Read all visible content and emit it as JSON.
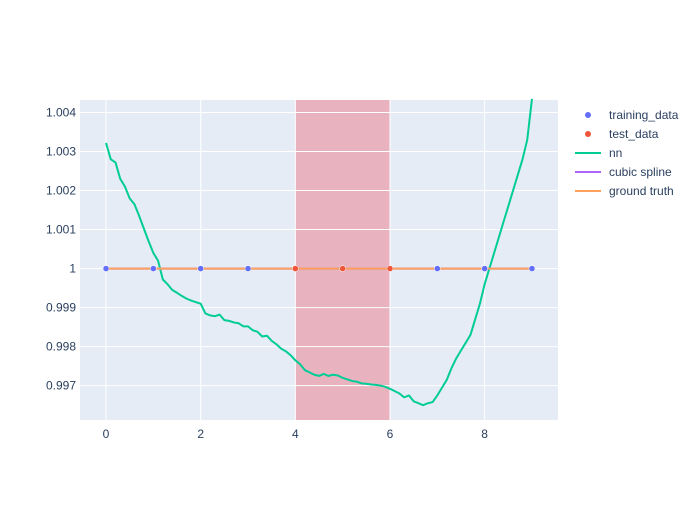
{
  "chart_data": {
    "type": "line",
    "title": "",
    "xlabel": "",
    "ylabel": "",
    "xlim": [
      -0.55,
      9.55
    ],
    "ylim": [
      0.99612,
      1.00432
    ],
    "grid": true,
    "legend_position": "top-right",
    "x_ticks": [
      0,
      2,
      4,
      6,
      8
    ],
    "x_tick_labels": [
      "0",
      "2",
      "4",
      "6",
      "8"
    ],
    "y_ticks": [
      0.997,
      0.998,
      0.999,
      1.0,
      1.001,
      1.002,
      1.003,
      1.004
    ],
    "y_tick_labels": [
      "0.997",
      "0.998",
      "0.999",
      "1",
      "1.001",
      "1.002",
      "1.003",
      "1.004"
    ],
    "shaded_region": {
      "x0": 4,
      "x1": 6,
      "color": "#e8a0ab"
    },
    "colors": {
      "plot_bg": "#e5ecf6",
      "grid": "#ffffff",
      "training_data": "#636efa",
      "test_data": "#ef553b",
      "nn": "#00cc96",
      "cubic_spline": "#ab63fa",
      "ground_truth": "#ffa15a"
    },
    "series": [
      {
        "name": "training_data",
        "mode": "markers",
        "x": [
          0,
          1,
          2,
          3,
          7,
          8,
          9
        ],
        "y": [
          1,
          1,
          1,
          1,
          1,
          1,
          1
        ]
      },
      {
        "name": "test_data",
        "mode": "markers",
        "x": [
          4,
          5,
          6
        ],
        "y": [
          1,
          1,
          1
        ]
      },
      {
        "name": "nn",
        "mode": "lines",
        "x": [
          0,
          0.1,
          0.2,
          0.3,
          0.4,
          0.5,
          0.6,
          0.7,
          0.8,
          0.9,
          1.0,
          1.1,
          1.2,
          1.3,
          1.4,
          1.5,
          1.6,
          1.7,
          1.8,
          1.9,
          2.0,
          2.1,
          2.2,
          2.3,
          2.4,
          2.5,
          2.6,
          2.7,
          2.8,
          2.9,
          3.0,
          3.1,
          3.2,
          3.3,
          3.4,
          3.5,
          3.6,
          3.7,
          3.8,
          3.9,
          4.0,
          4.1,
          4.2,
          4.3,
          4.4,
          4.5,
          4.6,
          4.7,
          4.8,
          4.9,
          5.0,
          5.1,
          5.2,
          5.3,
          5.4,
          5.5,
          5.6,
          5.7,
          5.8,
          5.9,
          6.0,
          6.1,
          6.2,
          6.3,
          6.4,
          6.5,
          6.6,
          6.7,
          6.8,
          6.9,
          7.0,
          7.1,
          7.2,
          7.3,
          7.4,
          7.5,
          7.6,
          7.7,
          7.8,
          7.9,
          8.0,
          8.1,
          8.2,
          8.3,
          8.4,
          8.5,
          8.6,
          8.7,
          8.8,
          8.9,
          9.0
        ],
        "y": [
          1.00322,
          1.0028,
          1.00272,
          1.0023,
          1.0021,
          1.0018,
          1.00165,
          1.00135,
          1.00102,
          1.0007,
          1.0004,
          1.0002,
          0.99972,
          0.9996,
          0.99945,
          0.99938,
          0.9993,
          0.99923,
          0.99918,
          0.99914,
          0.9991,
          0.99885,
          0.9988,
          0.99878,
          0.99882,
          0.99868,
          0.99866,
          0.99862,
          0.9986,
          0.99852,
          0.99852,
          0.99842,
          0.99838,
          0.99826,
          0.99828,
          0.99815,
          0.99806,
          0.99795,
          0.99788,
          0.99778,
          0.99765,
          0.99755,
          0.9974,
          0.99734,
          0.99728,
          0.99725,
          0.9973,
          0.99725,
          0.99728,
          0.99726,
          0.9972,
          0.99716,
          0.99712,
          0.9971,
          0.99706,
          0.99705,
          0.99703,
          0.99702,
          0.997,
          0.99697,
          0.99692,
          0.99686,
          0.9968,
          0.9967,
          0.99675,
          0.9966,
          0.99655,
          0.9965,
          0.99655,
          0.99658,
          0.99675,
          0.99695,
          0.99715,
          0.99745,
          0.9977,
          0.9979,
          0.9981,
          0.9983,
          0.9987,
          0.9991,
          0.9996,
          1.0,
          1.0004,
          1.0008,
          1.0012,
          1.0016,
          1.002,
          1.0024,
          1.0028,
          1.0033,
          1.00435
        ]
      },
      {
        "name": "cubic spline",
        "mode": "lines",
        "x": [
          0,
          9
        ],
        "y": [
          1,
          1
        ]
      },
      {
        "name": "ground truth",
        "mode": "lines",
        "x": [
          0,
          9
        ],
        "y": [
          1,
          1
        ]
      }
    ]
  }
}
